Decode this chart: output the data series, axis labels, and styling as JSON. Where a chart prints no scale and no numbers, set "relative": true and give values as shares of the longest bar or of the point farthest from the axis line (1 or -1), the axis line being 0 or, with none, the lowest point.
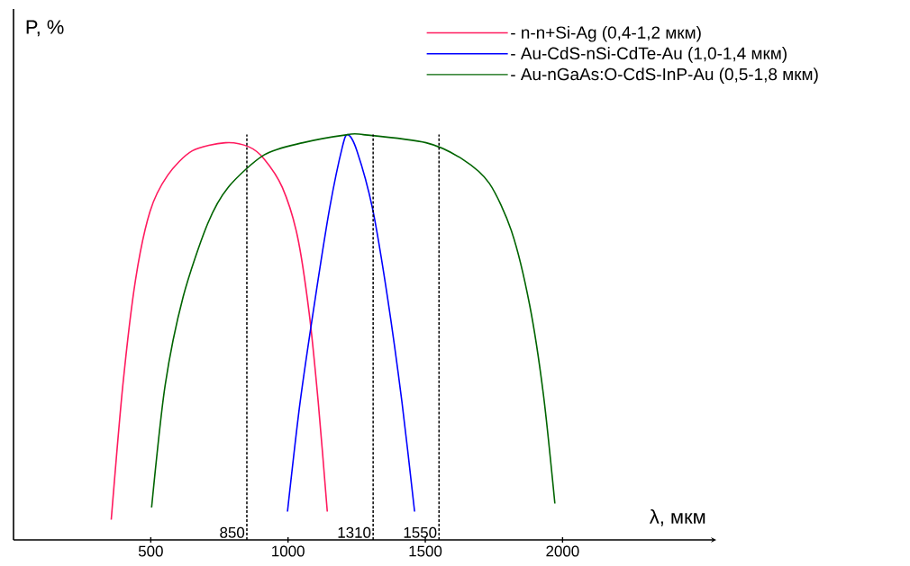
{
  "chart_data": {
    "type": "line",
    "relative": true,
    "xlabel": "λ, мкм",
    "ylabel": "P, %",
    "xlim": [
      0,
      2560
    ],
    "xticks": [
      500,
      1000,
      1500,
      2000
    ],
    "legend": "top right",
    "series": [
      {
        "name": "- n-n+Si-Ag (0,4-1,2 мкм)",
        "color": "#ff1a5e",
        "x": [
          356,
          398,
          444,
          497,
          562,
          651,
          772,
          857,
          913,
          979,
          1034,
          1077,
          1110,
          1143
        ],
        "values": [
          0.05,
          0.38,
          0.64,
          0.81,
          0.9,
          0.96,
          0.98,
          0.97,
          0.94,
          0.87,
          0.75,
          0.56,
          0.34,
          0.07
        ]
      },
      {
        "name": "- Au-CdS-nSi-CdTe-Au (1,0-1,4 мкм)",
        "color": "#0000ff",
        "x": [
          998,
          1044,
          1100,
          1152,
          1198,
          1218,
          1251,
          1307,
          1362,
          1415,
          1461
        ],
        "values": [
          0.07,
          0.34,
          0.6,
          0.82,
          0.97,
          1.0,
          0.96,
          0.82,
          0.6,
          0.34,
          0.07
        ]
      },
      {
        "name": "- Au-nGaAs:O-CdS-InP-Au (0,5-1,8 мкм)",
        "color": "#006400",
        "x": [
          503,
          552,
          618,
          707,
          782,
          913,
          1054,
          1218,
          1274,
          1503,
          1634,
          1733,
          1815,
          1880,
          1930,
          1972
        ],
        "values": [
          0.08,
          0.38,
          0.6,
          0.78,
          0.87,
          0.95,
          0.98,
          1.0,
          1.0,
          0.98,
          0.94,
          0.88,
          0.76,
          0.58,
          0.36,
          0.09
        ]
      }
    ],
    "ref_lines": [
      {
        "axis": "x",
        "value": 850,
        "label": "850",
        "color": "#000000",
        "line_style": "dashed"
      },
      {
        "axis": "x",
        "value": 1310,
        "label": "1310",
        "color": "#000000",
        "line_style": "dashed"
      },
      {
        "axis": "x",
        "value": 1550,
        "label": "1550",
        "color": "#000000",
        "line_style": "dashed"
      }
    ]
  }
}
